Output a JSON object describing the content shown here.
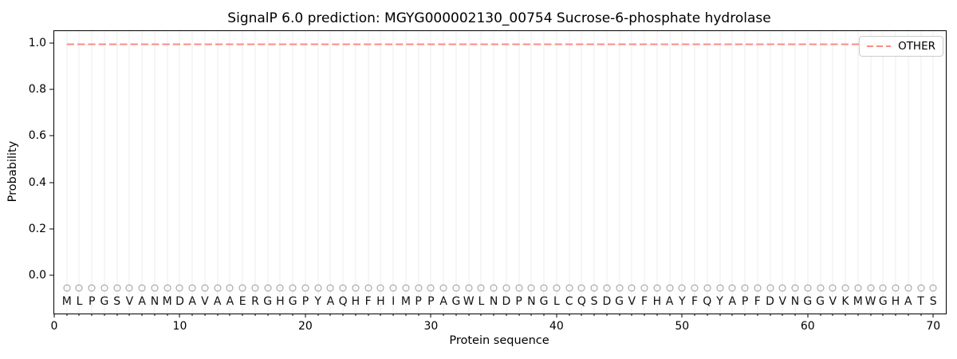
{
  "title": "SignalP 6.0 prediction: MGYG000002130_00754 Sucrose-6-phosphate hydrolase",
  "axes": {
    "x_label": "Protein sequence",
    "y_label": "Probability",
    "x_ticks": [
      0,
      10,
      20,
      30,
      40,
      50,
      60,
      70
    ],
    "y_ticks": [
      "0.0",
      "0.2",
      "0.4",
      "0.6",
      "0.8",
      "1.0"
    ]
  },
  "legend": {
    "position": "upper right",
    "entries": [
      {
        "label": "OTHER",
        "color": "#f98c84",
        "line_style": "dashed"
      }
    ]
  },
  "sequence": "MLPGSVANMDAVAAERGHGPYAQHFHIMPPAGWLNDPNGLCQSDGVFHAYFQYAPFDVNGGVKMWGHATS",
  "colors": {
    "other_line": "#f98c84",
    "gridline": "#ececec",
    "marker_edge": "#9a9a9a",
    "text": "#000000"
  },
  "chart_data": {
    "type": "line",
    "title": "SignalP 6.0 prediction: MGYG000002130_00754 Sucrose-6-phosphate hydrolase",
    "xlabel": "Protein sequence",
    "ylabel": "Probability",
    "xlim": [
      0,
      71
    ],
    "ylim": [
      -0.16,
      1.05
    ],
    "x_ticks": [
      0,
      10,
      20,
      30,
      40,
      50,
      60,
      70
    ],
    "y_ticks": [
      0.0,
      0.2,
      0.4,
      0.6,
      0.8,
      1.0
    ],
    "grid": "vertical gridline at every residue position 1-70",
    "legend_position": "upper right",
    "series": [
      {
        "name": "OTHER",
        "type": "line",
        "style": "dashed",
        "color": "#f98c84",
        "constant": true,
        "x": [
          1,
          70
        ],
        "y": [
          0.995,
          0.995
        ]
      }
    ],
    "sequence_track": {
      "marker": "o",
      "marker_y": -0.05,
      "label_y": -0.11,
      "positions_range": [
        1,
        70
      ],
      "residues": "MLPGSVANMDAVAAERGHGPYAQHFHIMPPAGWLNDPNGLCQSDGVFHAYFQYAPFDVNGGVKMWGHATS"
    }
  }
}
